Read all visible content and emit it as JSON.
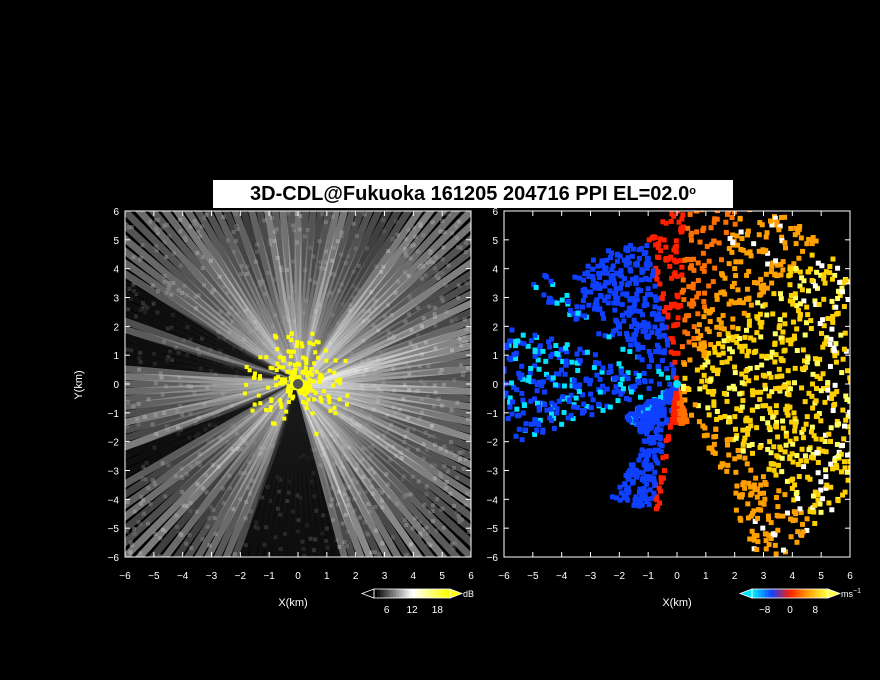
{
  "title_main": "3D-CDL@Fukuoka 161205 204716 PPI EL=02.0",
  "title_degree": "o",
  "chart_data": [
    {
      "type": "heatmap",
      "field": "reflectivity",
      "xlabel": "X(km)",
      "ylabel": "Y(km)",
      "xlim": [
        -6,
        6
      ],
      "ylim": [
        -6,
        6
      ],
      "xticks": [
        "-6",
        "-5",
        "-4",
        "-3",
        "-2",
        "-1",
        "0",
        "1",
        "2",
        "3",
        "4",
        "5",
        "6"
      ],
      "yticks": [
        "-6",
        "-5",
        "-4",
        "-3",
        "-2",
        "-1",
        "0",
        "1",
        "2",
        "3",
        "4",
        "5",
        "6"
      ],
      "colorbar": {
        "unit": "dB",
        "ticks": [
          "6",
          "12",
          "18"
        ],
        "range": [
          3,
          21
        ],
        "colors": [
          "#000000",
          "#ffffff",
          "#ffff00"
        ]
      },
      "grid": false
    },
    {
      "type": "heatmap",
      "field": "doppler_velocity",
      "xlabel": "X(km)",
      "xlim": [
        -6,
        6
      ],
      "ylim": [
        -6,
        6
      ],
      "xticks": [
        "-6",
        "-5",
        "-4",
        "-3",
        "-2",
        "-1",
        "0",
        "1",
        "2",
        "3",
        "4",
        "5",
        "6"
      ],
      "yticks": [
        "-6",
        "-5",
        "-4",
        "-3",
        "-2",
        "-1",
        "0",
        "1",
        "2",
        "3",
        "4",
        "5",
        "6"
      ],
      "colorbar": {
        "unit": "ms",
        "unit_exp": "−1",
        "ticks": [
          "−8",
          "0",
          "8"
        ],
        "range": [
          -12,
          12
        ],
        "colors": [
          "#00e5ff",
          "#1040ff",
          "#ff2000",
          "#ffa000",
          "#ffff40"
        ]
      },
      "grid": false
    }
  ]
}
